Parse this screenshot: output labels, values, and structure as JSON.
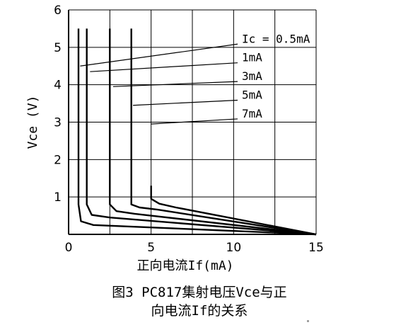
{
  "chart_data": {
    "type": "line",
    "xlabel": "正向电流If(mA)",
    "ylabel": "Vce (V)",
    "xlim": [
      0,
      15
    ],
    "ylim": [
      0,
      6
    ],
    "x_ticks": [
      0,
      5,
      10,
      15
    ],
    "y_ticks": [
      1,
      2,
      3,
      4,
      5,
      6
    ],
    "grid": true,
    "series": [
      {
        "name": "Ic = 0.5mA",
        "points": [
          [
            0.6,
            5.5
          ],
          [
            0.6,
            0.8
          ],
          [
            0.75,
            0.35
          ],
          [
            1.5,
            0.25
          ],
          [
            15,
            0
          ]
        ],
        "label_anchor": [
          0.7,
          4.5
        ]
      },
      {
        "name": "1mA",
        "points": [
          [
            1.1,
            5.5
          ],
          [
            1.1,
            0.8
          ],
          [
            1.4,
            0.52
          ],
          [
            2.5,
            0.45
          ],
          [
            15,
            0
          ]
        ],
        "label_anchor": [
          1.3,
          4.35
        ]
      },
      {
        "name": "3mA",
        "points": [
          [
            2.5,
            5.5
          ],
          [
            2.5,
            0.8
          ],
          [
            2.9,
            0.62
          ],
          [
            4.0,
            0.55
          ],
          [
            15,
            0
          ]
        ],
        "label_anchor": [
          2.7,
          3.95
        ]
      },
      {
        "name": "5mA",
        "points": [
          [
            3.8,
            5.5
          ],
          [
            3.8,
            0.8
          ],
          [
            4.3,
            0.72
          ],
          [
            5.4,
            0.66
          ],
          [
            15,
            0
          ]
        ],
        "label_anchor": [
          3.9,
          3.45
        ]
      },
      {
        "name": "7mA",
        "points": [
          [
            5.0,
            1.3
          ],
          [
            5.0,
            0.95
          ],
          [
            5.5,
            0.82
          ],
          [
            6.5,
            0.72
          ],
          [
            15,
            0
          ]
        ],
        "label_anchor": [
          5.0,
          2.95
        ]
      }
    ],
    "annotations": [
      {
        "text": "Ic = 0.5mA",
        "at": [
          10.5,
          5.2
        ]
      },
      {
        "text": "1mA",
        "at": [
          10.5,
          4.7
        ]
      },
      {
        "text": "3mA",
        "at": [
          10.5,
          4.2
        ]
      },
      {
        "text": "5mA",
        "at": [
          10.5,
          3.7
        ]
      },
      {
        "text": "7mA",
        "at": [
          10.5,
          3.2
        ]
      }
    ]
  },
  "caption": {
    "line1": "图3 PC817集射电压Vce与正",
    "line2": "向电流If的关系"
  },
  "colors": {
    "curve": "#000000",
    "grid": "#000000",
    "background": "#ffffff"
  }
}
